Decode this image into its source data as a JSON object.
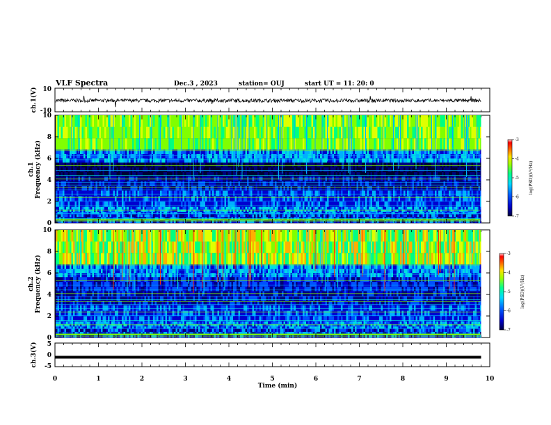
{
  "header": {
    "title": "VLF Spectra",
    "date": "Dec.3  , 2023",
    "station": "station= OUJ",
    "start": "start  UT  =   11: 20: 0"
  },
  "chart_data": [
    {
      "type": "line",
      "panel": "ch1-waveform",
      "ylabel": "ch.1(V)",
      "ylim": [
        -10,
        10
      ],
      "yticks": [
        "10",
        "-10"
      ],
      "xlim": [
        0,
        10
      ],
      "description_values": {
        "approx_level": -0.5,
        "approx_spread": 1.5
      }
    },
    {
      "type": "heatmap",
      "panel": "ch1-spectrogram",
      "ylabel_line1": "ch.1",
      "ylabel_line2": "Frequency (kHz)",
      "ylim": [
        0,
        10
      ],
      "yticks": [
        "0",
        "2",
        "4",
        "6",
        "8",
        "10"
      ],
      "xlim": [
        0,
        10
      ],
      "colorbar": {
        "label": "log(PSD)(V²/Hz)",
        "range": [
          -7,
          -3
        ],
        "ticks": [
          "-3",
          "-4",
          "-5",
          "-6",
          "-7"
        ]
      }
    },
    {
      "type": "heatmap",
      "panel": "ch2-spectrogram",
      "ylabel_line1": "ch.2",
      "ylabel_line2": "Frequency (kHz)",
      "ylim": [
        0,
        10
      ],
      "yticks": [
        "0",
        "2",
        "4",
        "6",
        "8",
        "10"
      ],
      "xlim": [
        0,
        10
      ],
      "colorbar": {
        "label": "log(PSD)(V²/Hz)",
        "range": [
          -7,
          -3
        ],
        "ticks": [
          "-3",
          "-4",
          "-5",
          "-6",
          "-7"
        ]
      }
    },
    {
      "type": "line",
      "panel": "ch3-waveform",
      "ylabel": "ch.3(V)",
      "ylim": [
        -5,
        5
      ],
      "yticks": [
        "5",
        "0",
        "-5"
      ],
      "xlim": [
        0,
        10
      ],
      "xlabel": "Time (min)",
      "xticks": [
        "0",
        "1",
        "2",
        "3",
        "4",
        "5",
        "6",
        "7",
        "8",
        "9",
        "10"
      ],
      "data_end_x": 9.8,
      "approx_level": -1
    }
  ],
  "colors": {
    "palette": [
      "#000033",
      "#00007a",
      "#0000d0",
      "#0050ff",
      "#00b0ff",
      "#00e0e0",
      "#00ff80",
      "#80ff00",
      "#e0ff00",
      "#ffb000",
      "#ff3000",
      "#e00000"
    ]
  }
}
